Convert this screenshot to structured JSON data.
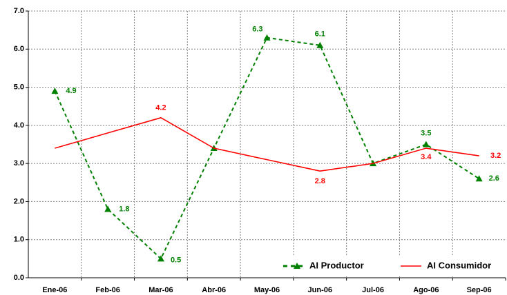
{
  "chart_data": {
    "type": "line",
    "categories": [
      "Ene-06",
      "Feb-06",
      "Mar-06",
      "Abr-06",
      "May-06",
      "Jun-06",
      "Jul-06",
      "Ago-06",
      "Sep-06"
    ],
    "series": [
      {
        "name": "AI Productor",
        "color": "#008000",
        "dash": true,
        "marker": "triangle",
        "values": [
          4.9,
          1.8,
          0.5,
          3.4,
          6.3,
          6.1,
          3.0,
          3.5,
          2.6
        ],
        "value_labels": [
          "4.9",
          "1.8",
          "0.5",
          null,
          "6.3",
          "6.1",
          null,
          "3.5",
          "2.6"
        ]
      },
      {
        "name": "AI Consumidor",
        "color": "#ff0000",
        "dash": false,
        "marker": null,
        "values": [
          3.4,
          3.8,
          4.2,
          3.4,
          3.1,
          2.8,
          3.0,
          3.4,
          3.2
        ],
        "value_labels": [
          null,
          null,
          "4.2",
          null,
          null,
          "2.8",
          null,
          "3.4",
          "3.2"
        ]
      }
    ],
    "ylim": [
      0,
      7
    ],
    "yticks": [
      {
        "value": 0,
        "label": "0.0"
      },
      {
        "value": 1,
        "label": "1.0"
      },
      {
        "value": 2,
        "label": "2.0"
      },
      {
        "value": 3,
        "label": "3.0"
      },
      {
        "value": 4,
        "label": "4.0"
      },
      {
        "value": 5,
        "label": "5.0"
      },
      {
        "value": 6,
        "label": "6.0"
      },
      {
        "value": 7,
        "label": "7.0"
      }
    ],
    "grid": true,
    "legend": "lower right"
  }
}
